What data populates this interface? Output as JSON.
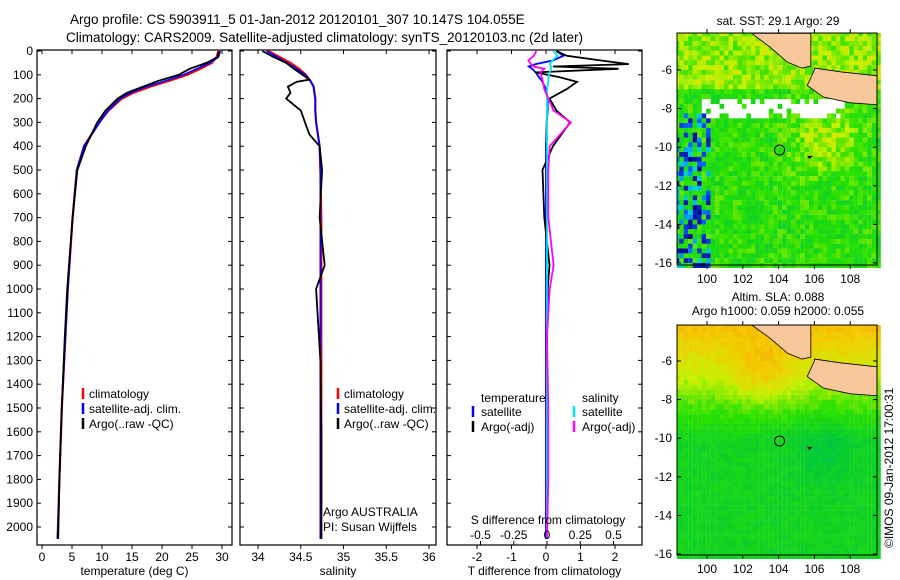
{
  "header": {
    "title_line1": "Argo profile: CS 5903911_5 01-Jan-2012 20120101_307 10.147S 104.055E",
    "title_line2": "Climatology: CARS2009. Satellite-adjusted climatology: synTS_20120103.nc (2d later)"
  },
  "colors": {
    "climatology": "#ff0000",
    "satellite": "#0000ff",
    "argo": "#000000",
    "s_satellite": "#00e5ee",
    "s_argo": "#ff00ff",
    "land": "#f9c89a"
  },
  "chart_data": [
    {
      "type": "line",
      "id": "temperature",
      "xlabel": "temperature (deg C)",
      "ylabel": "",
      "xlim": [
        -2,
        31
      ],
      "ylim": [
        2050,
        0
      ],
      "xticks": [
        "0",
        "5",
        "10",
        "15",
        "20",
        "25",
        "30"
      ],
      "yticks": [
        "0",
        "100",
        "200",
        "300",
        "400",
        "500",
        "600",
        "700",
        "800",
        "900",
        "1000",
        "1100",
        "1200",
        "1300",
        "1400",
        "1500",
        "1600",
        "1700",
        "1800",
        "1900",
        "2000"
      ],
      "depth": [
        0,
        25,
        50,
        75,
        100,
        125,
        150,
        175,
        200,
        250,
        300,
        400,
        500,
        700,
        1000,
        1200,
        1500,
        1800,
        2050
      ],
      "series": [
        {
          "name": "climatology",
          "values": [
            29.4,
            29.1,
            28.3,
            26.4,
            24.2,
            21.2,
            18.0,
            15.3,
            13.3,
            11.1,
            9.5,
            7.0,
            5.8,
            5.1,
            4.3,
            3.9,
            3.3,
            2.9,
            2.6
          ]
        },
        {
          "name": "satellite-adj. clim.",
          "values": [
            29.7,
            29.4,
            28.0,
            25.8,
            23.6,
            20.6,
            17.4,
            14.8,
            13.0,
            11.0,
            9.6,
            7.0,
            5.8,
            5.1,
            4.3,
            3.9,
            3.3,
            2.9,
            2.6
          ]
        },
        {
          "name": "Argo(..raw -QC)",
          "values": [
            29.5,
            29.3,
            27.4,
            24.6,
            22.8,
            19.4,
            16.8,
            14.2,
            12.6,
            10.6,
            9.2,
            7.3,
            5.9,
            5.1,
            4.2,
            3.8,
            3.3,
            2.9,
            2.7
          ]
        }
      ]
    },
    {
      "type": "line",
      "id": "salinity",
      "xlabel": "salinity",
      "xlim": [
        33.8,
        36.1
      ],
      "ylim": [
        2050,
        0
      ],
      "xticks": [
        "34",
        "34.5",
        "35",
        "35.5",
        "36"
      ],
      "depth": [
        0,
        25,
        50,
        75,
        100,
        120,
        130,
        150,
        175,
        200,
        250,
        300,
        350,
        400,
        500,
        700,
        900,
        1000,
        1300,
        1600,
        2050
      ],
      "series": [
        {
          "name": "climatology",
          "values": [
            34.12,
            34.25,
            34.38,
            34.48,
            34.56,
            34.6,
            34.62,
            34.65,
            34.66,
            34.67,
            34.67,
            34.68,
            34.7,
            34.72,
            34.73,
            34.74,
            34.74,
            34.74,
            34.74,
            34.74,
            34.74
          ]
        },
        {
          "name": "satellite-adj. clim.",
          "values": [
            34.1,
            34.22,
            34.34,
            34.45,
            34.55,
            34.6,
            34.62,
            34.65,
            34.66,
            34.67,
            34.67,
            34.68,
            34.7,
            34.72,
            34.73,
            34.73,
            34.73,
            34.73,
            34.73,
            34.73,
            34.73
          ]
        },
        {
          "name": "Argo(..raw -QC)",
          "values": [
            34.05,
            34.18,
            34.33,
            34.42,
            34.52,
            34.6,
            34.45,
            34.35,
            34.38,
            34.33,
            34.5,
            34.55,
            34.6,
            34.72,
            34.75,
            34.72,
            34.78,
            34.68,
            34.73,
            34.74,
            34.74
          ]
        }
      ],
      "annotation_line1": "Argo AUSTRALIA",
      "annotation_line2": "PI: Susan Wijffels"
    },
    {
      "type": "line",
      "id": "differences",
      "xlabel": "T difference from climatology",
      "xlabel2": "S difference from climatology",
      "xlim": [
        -2.9,
        2.9
      ],
      "xlim_s": [
        -0.725,
        0.725
      ],
      "xticks": [
        "-2",
        "-1",
        "0",
        "1",
        "2"
      ],
      "xticks_s": [
        "-0.5",
        "-0.25",
        "0",
        "0.25",
        "0.5"
      ],
      "ylim": [
        2050,
        0
      ],
      "legend_temperature_title": "temperature",
      "legend_salinity_title": "salinity",
      "depth": [
        0,
        20,
        40,
        55,
        65,
        75,
        90,
        110,
        130,
        160,
        200,
        250,
        300,
        400,
        500,
        700,
        900,
        1000,
        1200,
        1500,
        1800,
        2050
      ],
      "series": [
        {
          "name": "satellite",
          "quantity": "temperature",
          "values": [
            0.3,
            0.5,
            0.2,
            -0.3,
            -0.5,
            -0.4,
            -0.3,
            -0.2,
            -0.1,
            0,
            0.05,
            0.05,
            0.02,
            0,
            0,
            0,
            0,
            0,
            0,
            0,
            0,
            0
          ]
        },
        {
          "name": "Argo(-adj)",
          "quantity": "temperature",
          "values": [
            0.3,
            0.6,
            1.6,
            2.4,
            0.2,
            2.1,
            -0.3,
            0.4,
            0.9,
            0.6,
            0.1,
            0.3,
            0.7,
            0.2,
            -0.1,
            -0.05,
            0.1,
            0.05,
            0.03,
            0.02,
            0.05,
            0.03
          ]
        },
        {
          "name": "satellite",
          "quantity": "salinity",
          "values": [
            0.05,
            0.08,
            0.04,
            0.02,
            0.03,
            0.03,
            0.02,
            0.01,
            0.01,
            0,
            0,
            0,
            0,
            0,
            0,
            0,
            0,
            0,
            0,
            0,
            0,
            0
          ]
        },
        {
          "name": "Argo(-adj)",
          "quantity": "salinity",
          "values": [
            -0.08,
            -0.1,
            -0.14,
            -0.12,
            -0.1,
            -0.02,
            -0.05,
            -0.04,
            -0.03,
            -0.02,
            0.01,
            0.05,
            0.18,
            0.02,
            0.01,
            0.01,
            0.05,
            0.02,
            0,
            0.01,
            0.01,
            0
          ]
        }
      ]
    }
  ],
  "maps": [
    {
      "id": "sst",
      "title_line1": "sat. SST: 29.1 Argo: 29",
      "title_line2": "",
      "lat_ticks": [
        "-6",
        "-8",
        "-10",
        "-12",
        "-14",
        "-16"
      ],
      "lon_ticks": [
        "100",
        "102",
        "104",
        "106",
        "108"
      ]
    },
    {
      "id": "sla",
      "title_line1": "Altim. SLA: 0.088",
      "title_line2": "Argo h1000: 0.059 h2000: 0.055",
      "lat_ticks": [
        "-6",
        "-8",
        "-10",
        "-12",
        "-14",
        "-16"
      ],
      "lon_ticks": [
        "100",
        "102",
        "104",
        "106",
        "108"
      ]
    }
  ],
  "float_position": {
    "lat": -10.147,
    "lon": 104.055
  },
  "stamp": "©IMOS 09-Jan-2012 17:00:31"
}
